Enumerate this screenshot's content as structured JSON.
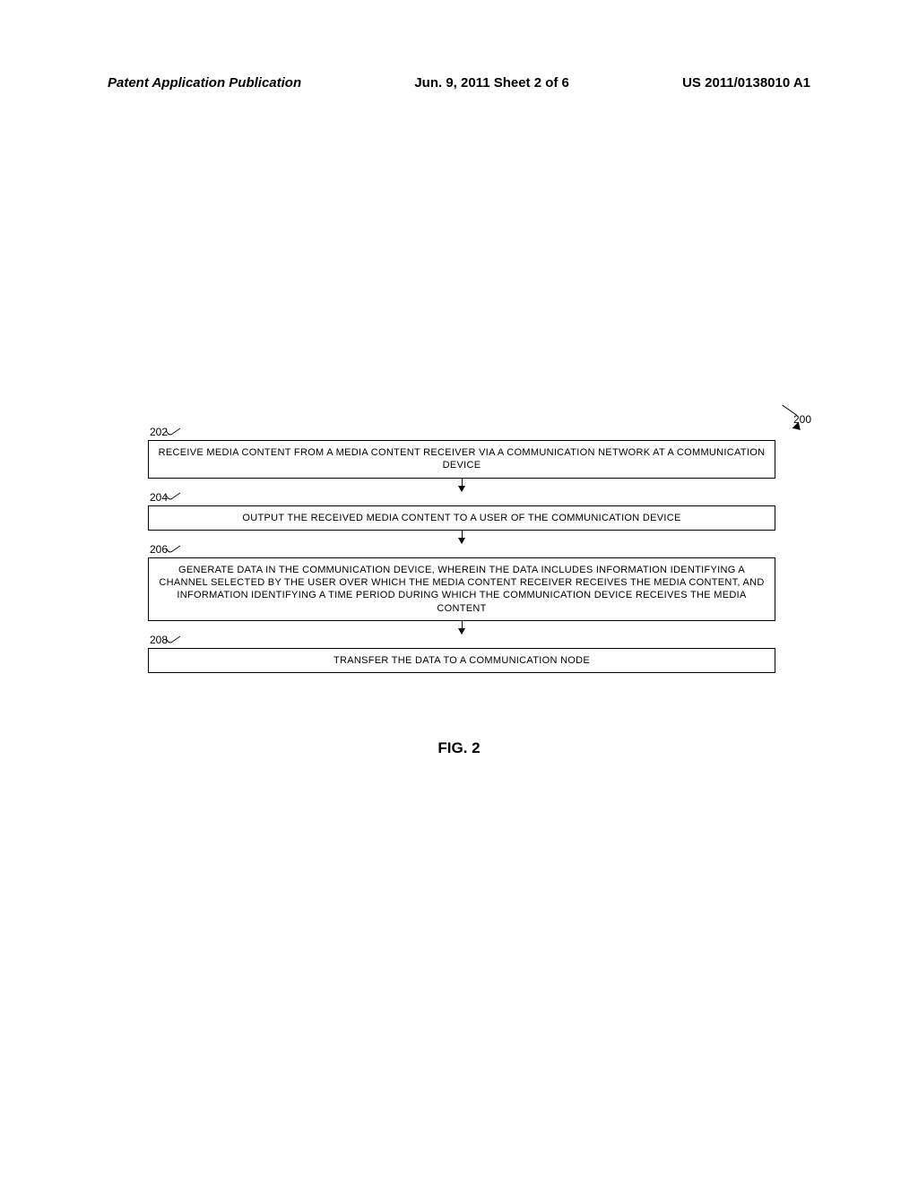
{
  "header": {
    "left": "Patent Application Publication",
    "center": "Jun. 9, 2011  Sheet 2 of 6",
    "right": "US 2011/0138010 A1"
  },
  "flowchart": {
    "type": "flowchart",
    "ref_number": "200",
    "background_color": "#ffffff",
    "border_color": "#000000",
    "text_color": "#000000",
    "box_fontsize": 11,
    "label_fontsize": 12,
    "steps": [
      {
        "label": "202",
        "text": "RECEIVE MEDIA CONTENT FROM A MEDIA CONTENT RECEIVER VIA A COMMUNICATION NETWORK AT A COMMUNICATION DEVICE"
      },
      {
        "label": "204",
        "text": "OUTPUT THE RECEIVED MEDIA CONTENT TO A USER OF THE COMMUNICATION DEVICE"
      },
      {
        "label": "206",
        "text": "GENERATE DATA IN THE COMMUNICATION DEVICE, WHEREIN THE DATA INCLUDES INFORMATION IDENTIFYING A CHANNEL SELECTED BY THE USER OVER WHICH THE MEDIA CONTENT RECEIVER RECEIVES THE MEDIA CONTENT, AND INFORMATION IDENTIFYING A TIME PERIOD DURING WHICH THE COMMUNICATION DEVICE RECEIVES THE MEDIA CONTENT"
      },
      {
        "label": "208",
        "text": "TRANSFER THE DATA TO A COMMUNICATION NODE"
      }
    ]
  },
  "caption": "FIG. 2"
}
